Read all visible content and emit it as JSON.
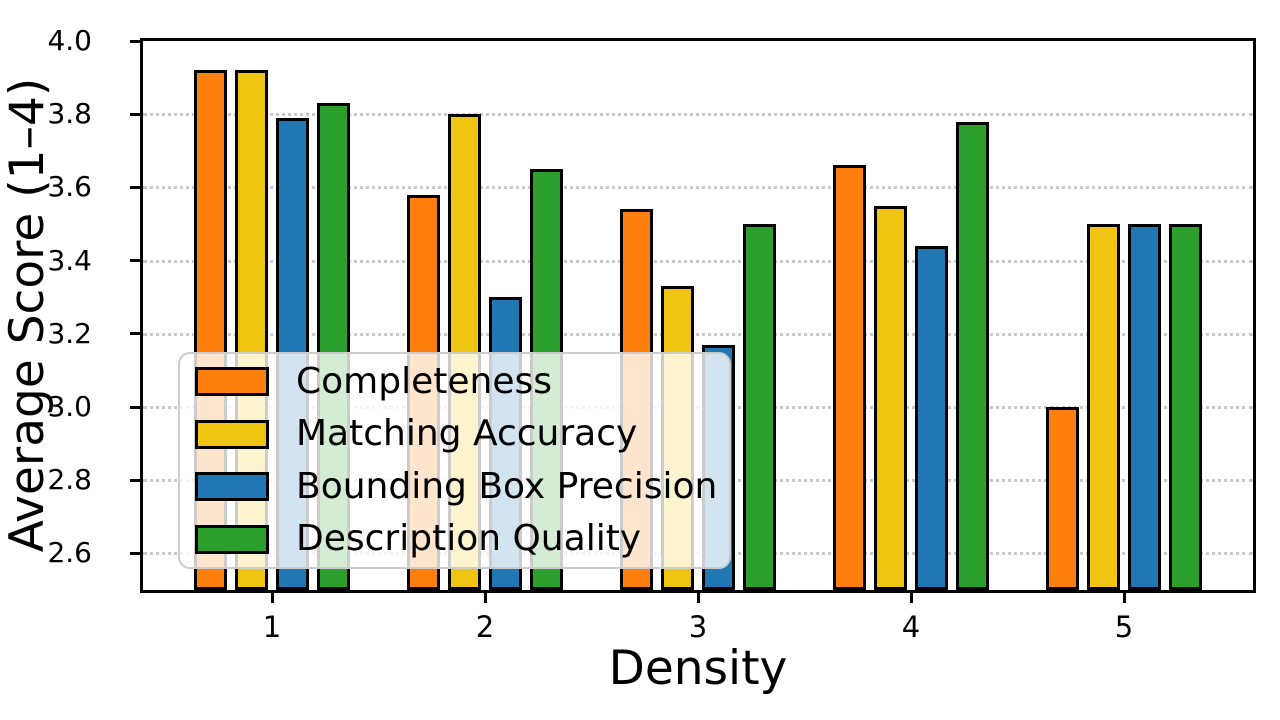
{
  "chart_data": {
    "type": "bar",
    "title": "",
    "xlabel": "Density",
    "ylabel": "Average Score (1–4)",
    "categories": [
      "1",
      "2",
      "3",
      "4",
      "5"
    ],
    "series": [
      {
        "name": "Completeness",
        "color": "#FF7F0E",
        "values": [
          3.92,
          3.58,
          3.54,
          3.66,
          3.0
        ]
      },
      {
        "name": "Matching Accuracy",
        "color": "#F0C511",
        "values": [
          3.92,
          3.8,
          3.33,
          3.55,
          3.5
        ]
      },
      {
        "name": "Bounding Box Precision",
        "color": "#1F77B4",
        "values": [
          3.79,
          3.3,
          3.17,
          3.44,
          3.5
        ]
      },
      {
        "name": "Description Quality",
        "color": "#2CA02C",
        "values": [
          3.83,
          3.65,
          3.5,
          3.78,
          3.5
        ]
      }
    ],
    "ylim": [
      2.5,
      4.0
    ],
    "yticks": [
      "2.6",
      "2.8",
      "3.0",
      "3.2",
      "3.4",
      "3.6",
      "3.8",
      "4.0"
    ],
    "grid": true,
    "grid_style": "dotted",
    "grid_color": "#c9c9c9",
    "bar_edge_color": "#000000",
    "legend_position": "lower-left",
    "legend_background": "rgba(255,255,255,0.8)"
  }
}
